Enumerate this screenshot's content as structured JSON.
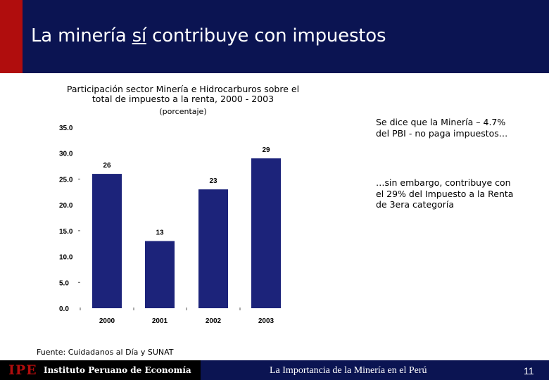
{
  "header": {
    "title_before": "La minería ",
    "title_underlined": "sí",
    "title_after": " contribuye con impuestos"
  },
  "chart_data": {
    "type": "bar",
    "title": "Participación sector Minería e Hidrocarburos sobre el total de impuesto a la renta, 2000 - 2003",
    "subtitle": "(porcentaje)",
    "categories": [
      "2000",
      "2001",
      "2002",
      "2003"
    ],
    "values": [
      26,
      13,
      23,
      29
    ],
    "data_labels": [
      "26",
      "13",
      "23",
      "29"
    ],
    "ylim": [
      0,
      35
    ],
    "yticks": [
      "0.0",
      "5.0",
      "10.0",
      "15.0",
      "20.0",
      "25.0",
      "30.0",
      "35.0"
    ],
    "xlabel": "",
    "ylabel": "",
    "bar_color": "#1c237a"
  },
  "chart": {
    "title_line1": "Participación sector Minería e Hidrocarburos sobre el",
    "title_line2": "total de impuesto a la renta, 2000 - 2003",
    "subtitle": "(porcentaje)"
  },
  "notes": {
    "note1": "Se dice que la Minería – 4.7% del PBI - no paga impuestos…",
    "note2": "…sin embargo, contribuye con el 29% del Impuesto a la Renta de 3era categoría"
  },
  "source": "Fuente: Cuidadanos al Día y SUNAT",
  "footer": {
    "logo_mark": "IPE",
    "logo_text": "Instituto Peruano de Economía",
    "presentation_title": "La Importancia de la Minería en el Perú",
    "page_number": "11"
  },
  "colors": {
    "navy": "#0b1452",
    "red": "#b00d0d",
    "bar": "#1c237a"
  }
}
